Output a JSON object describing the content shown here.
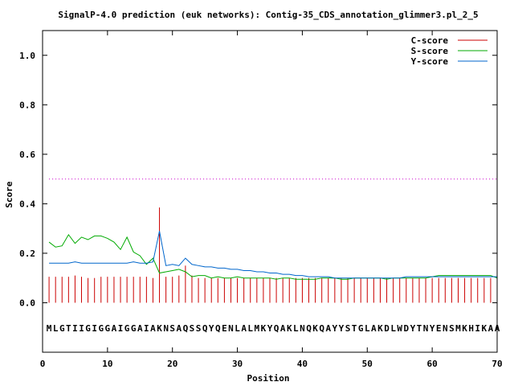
{
  "chart_data": {
    "type": "line",
    "title": "SignalP-4.0 prediction (euk networks): Contig-35_CDS_annotation_glimmer3.pl_2_5",
    "xlabel": "Position",
    "ylabel": "Score",
    "xlim": [
      0,
      70
    ],
    "ylim": [
      -0.2,
      1.1
    ],
    "xticks": [
      0,
      10,
      20,
      30,
      40,
      50,
      60,
      70
    ],
    "yticks": [
      0.0,
      0.2,
      0.4,
      0.6,
      0.8,
      1.0
    ],
    "xtick_labels": [
      "0",
      "10",
      "20",
      "30",
      "40",
      "50",
      "60",
      "70"
    ],
    "ytick_labels": [
      "0.0",
      "0.2",
      "0.4",
      "0.6",
      "0.8",
      "1.0"
    ],
    "threshold": 0.5,
    "sequence": "MLGTIIGIGGAIGGAIAKNSAQSSQYQENLALMKYQAKLNQKQAYYSTGLAKDLWDYTNYENSMKHIKAA",
    "legend_position": "top-right",
    "grid": false,
    "series": [
      {
        "name": "C-score",
        "color": "#cc0000",
        "style": "impulses",
        "values": [
          0.105,
          0.105,
          0.105,
          0.105,
          0.11,
          0.105,
          0.1,
          0.1,
          0.105,
          0.105,
          0.105,
          0.105,
          0.105,
          0.105,
          0.105,
          0.105,
          0.1,
          0.385,
          0.105,
          0.105,
          0.11,
          0.15,
          0.11,
          0.1,
          0.1,
          0.1,
          0.1,
          0.1,
          0.1,
          0.1,
          0.1,
          0.1,
          0.1,
          0.1,
          0.1,
          0.1,
          0.1,
          0.1,
          0.1,
          0.1,
          0.1,
          0.1,
          0.1,
          0.1,
          0.1,
          0.1,
          0.1,
          0.1,
          0.1,
          0.1,
          0.1,
          0.1,
          0.1,
          0.1,
          0.1,
          0.1,
          0.1,
          0.1,
          0.1,
          0.1,
          0.1,
          0.1,
          0.1,
          0.1,
          0.1,
          0.1,
          0.1,
          0.1,
          0.1,
          0.1
        ]
      },
      {
        "name": "S-score",
        "color": "#00aa00",
        "style": "line",
        "values": [
          0.245,
          0.225,
          0.23,
          0.275,
          0.24,
          0.265,
          0.255,
          0.27,
          0.27,
          0.26,
          0.245,
          0.215,
          0.265,
          0.205,
          0.19,
          0.155,
          0.18,
          0.12,
          0.125,
          0.13,
          0.135,
          0.125,
          0.105,
          0.11,
          0.11,
          0.1,
          0.105,
          0.1,
          0.1,
          0.105,
          0.1,
          0.1,
          0.1,
          0.1,
          0.1,
          0.095,
          0.1,
          0.1,
          0.095,
          0.095,
          0.095,
          0.095,
          0.1,
          0.1,
          0.1,
          0.095,
          0.095,
          0.1,
          0.1,
          0.1,
          0.1,
          0.1,
          0.095,
          0.1,
          0.1,
          0.1,
          0.1,
          0.1,
          0.1,
          0.105,
          0.11,
          0.11,
          0.11,
          0.11,
          0.11,
          0.11,
          0.11,
          0.11,
          0.11,
          0.1
        ]
      },
      {
        "name": "Y-score",
        "color": "#0066cc",
        "style": "line",
        "values": [
          0.16,
          0.16,
          0.16,
          0.16,
          0.165,
          0.16,
          0.16,
          0.16,
          0.16,
          0.16,
          0.16,
          0.16,
          0.16,
          0.165,
          0.16,
          0.16,
          0.165,
          0.29,
          0.15,
          0.155,
          0.15,
          0.18,
          0.155,
          0.15,
          0.145,
          0.145,
          0.14,
          0.14,
          0.135,
          0.135,
          0.13,
          0.13,
          0.125,
          0.125,
          0.12,
          0.12,
          0.115,
          0.115,
          0.11,
          0.11,
          0.105,
          0.105,
          0.105,
          0.105,
          0.1,
          0.1,
          0.1,
          0.1,
          0.1,
          0.1,
          0.1,
          0.1,
          0.1,
          0.1,
          0.1,
          0.105,
          0.105,
          0.105,
          0.105,
          0.105,
          0.105,
          0.105,
          0.105,
          0.105,
          0.105,
          0.105,
          0.105,
          0.105,
          0.105,
          0.105
        ]
      }
    ]
  }
}
